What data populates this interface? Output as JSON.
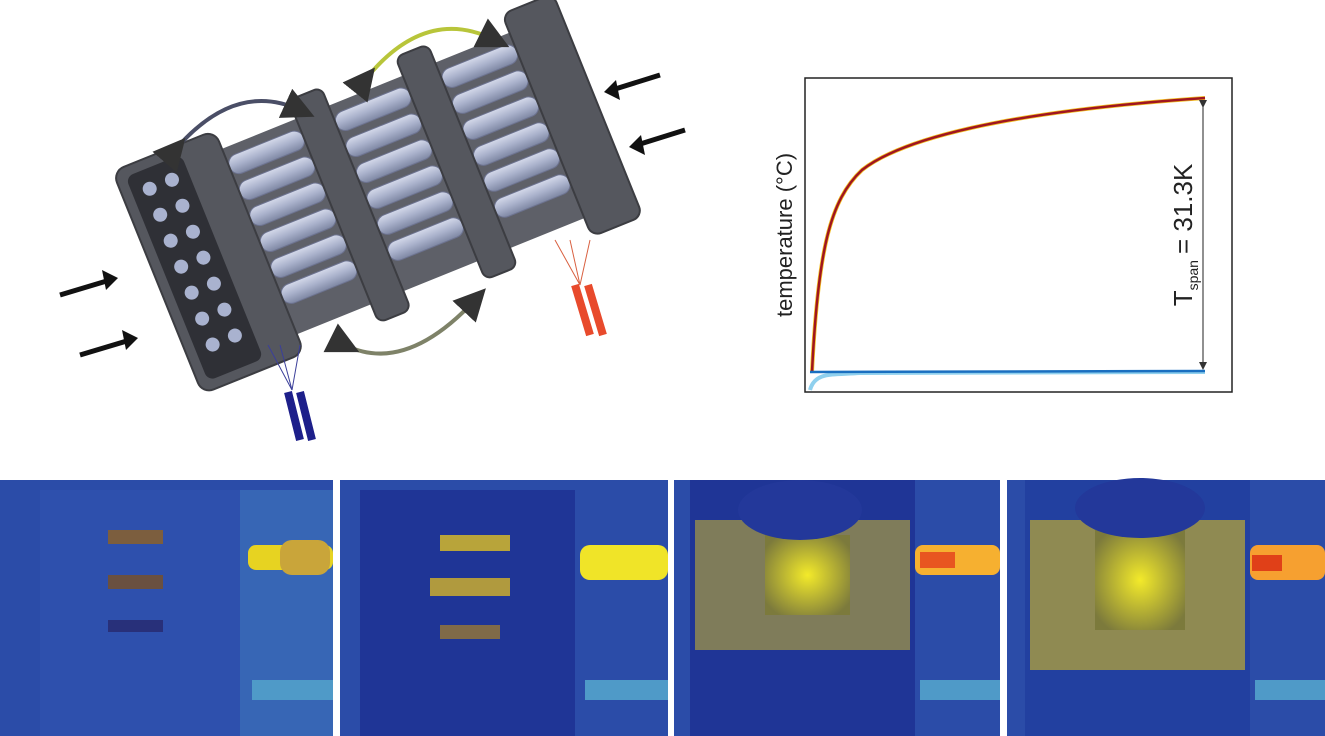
{
  "plot": {
    "y_label": "temperature (°C)",
    "annotation": {
      "symbol": "T",
      "subscript": "span",
      "text": "= 31.3K"
    }
  }
}
